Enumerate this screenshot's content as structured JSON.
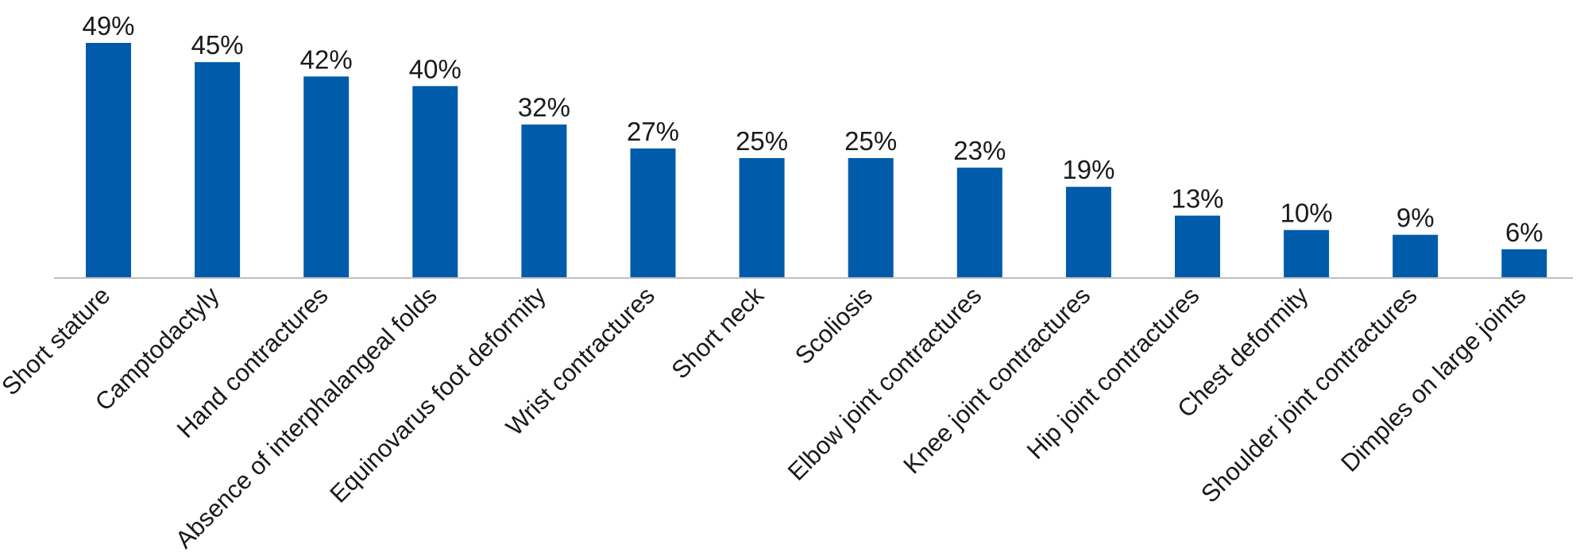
{
  "chart_data": {
    "type": "bar",
    "categories": [
      "Short stature",
      "Camptodactyly",
      "Hand contractures",
      "Absence of interphalangeal folds",
      "Equinovarus foot deformity",
      "Wrist contractures",
      "Short neck",
      "Scoliosis",
      "Elbow joint contractures",
      "Knee joint contractures",
      "Hip joint contractures",
      "Chest deformity",
      "Shoulder joint contractures",
      "Dimples on large joints"
    ],
    "values": [
      49,
      45,
      42,
      40,
      32,
      27,
      25,
      25,
      23,
      19,
      13,
      10,
      9,
      6
    ],
    "data_labels": [
      "49%",
      "45%",
      "42%",
      "40%",
      "32%",
      "27%",
      "25%",
      "25%",
      "23%",
      "19%",
      "13%",
      "10%",
      "9%",
      "6%"
    ],
    "ylim": [
      0,
      49
    ],
    "grid": false,
    "legend": "none",
    "bar_color": "#005baa",
    "axis_color": "#bfbfbf"
  }
}
